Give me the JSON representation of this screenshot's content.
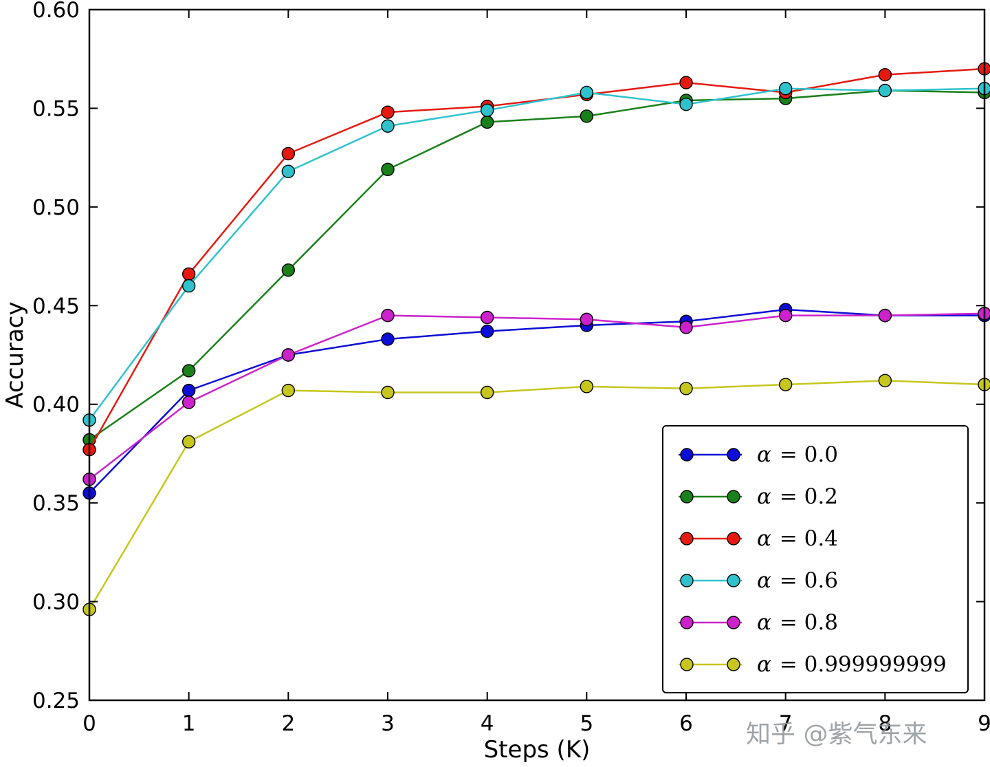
{
  "chart_data": {
    "type": "line",
    "x": [
      0,
      1,
      2,
      3,
      4,
      5,
      6,
      7,
      8,
      9
    ],
    "series": [
      {
        "name": "α = 0.0",
        "color": "#0d0dd6",
        "values": [
          0.355,
          0.407,
          0.425,
          0.433,
          0.437,
          0.44,
          0.442,
          0.448,
          0.445,
          0.445
        ]
      },
      {
        "name": "α = 0.2",
        "color": "#1a801a",
        "values": [
          0.382,
          0.417,
          0.468,
          0.519,
          0.543,
          0.546,
          0.554,
          0.555,
          0.559,
          0.558
        ]
      },
      {
        "name": "α = 0.4",
        "color": "#e41a10",
        "values": [
          0.377,
          0.466,
          0.527,
          0.548,
          0.551,
          0.557,
          0.563,
          0.558,
          0.567,
          0.57
        ]
      },
      {
        "name": "α = 0.6",
        "color": "#2fc2cc",
        "values": [
          0.392,
          0.46,
          0.518,
          0.541,
          0.549,
          0.558,
          0.552,
          0.56,
          0.559,
          0.56
        ]
      },
      {
        "name": "α = 0.8",
        "color": "#cc22cc",
        "values": [
          0.362,
          0.401,
          0.425,
          0.445,
          0.444,
          0.443,
          0.439,
          0.445,
          0.445,
          0.446
        ]
      },
      {
        "name": "α = 0.999999999",
        "color": "#c6c61e",
        "values": [
          0.296,
          0.381,
          0.407,
          0.406,
          0.406,
          0.409,
          0.408,
          0.41,
          0.412,
          0.41
        ]
      }
    ],
    "title": "",
    "xlabel": "Steps (K)",
    "ylabel": "Accuracy",
    "xlim": [
      0,
      9
    ],
    "ylim": [
      0.25,
      0.6
    ],
    "xticks": [
      0,
      1,
      2,
      3,
      4,
      5,
      6,
      7,
      8,
      9
    ],
    "xtick_labels": [
      "0",
      "1",
      "2",
      "3",
      "4",
      "5",
      "6",
      "7",
      "8",
      "9"
    ],
    "yticks": [
      0.25,
      0.3,
      0.35,
      0.4,
      0.45,
      0.5,
      0.55,
      0.6
    ],
    "ytick_labels": [
      "0.25",
      "0.30",
      "0.35",
      "0.40",
      "0.45",
      "0.50",
      "0.55",
      "0.60"
    ],
    "grid": false,
    "legend_position": "lower right"
  },
  "watermark": "知乎 @紫气东来"
}
